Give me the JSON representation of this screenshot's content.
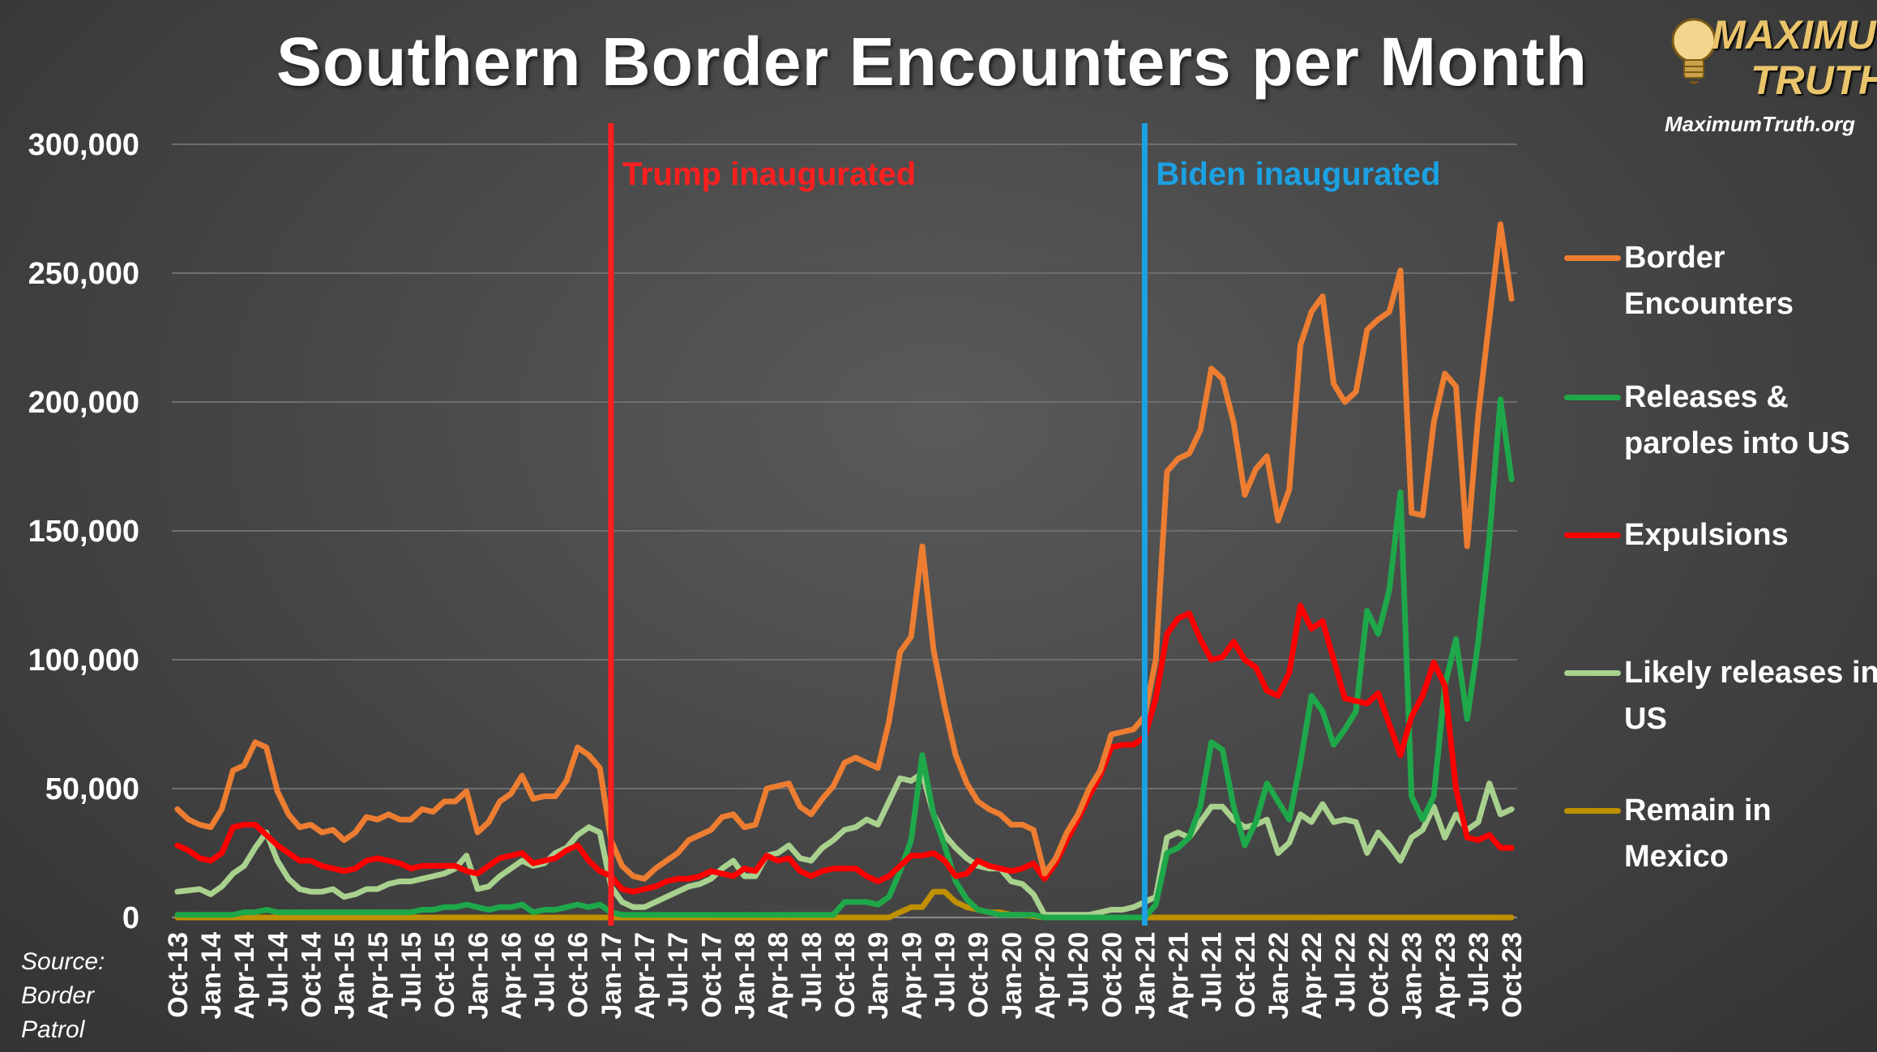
{
  "title": "Southern Border Encounters per Month",
  "logo": {
    "line1": "MAXIMUM",
    "line2": "TRUTH",
    "url": "MaximumTruth.org"
  },
  "source": {
    "line1": "Source:",
    "line2": "Border",
    "line3": "Patrol"
  },
  "colors": {
    "border_encounters": "#ed7d31",
    "releases": "#1ea84a",
    "expulsions": "#ff0000",
    "likely_releases": "#a9d18e",
    "remain_in_mexico": "#bf9000",
    "trump_line": "#ff1f1f",
    "biden_line": "#1ba1e2",
    "grid": "#6e6e6e",
    "axis_text": "#ffffff"
  },
  "chart_data": {
    "type": "line",
    "ylim": [
      0,
      300000
    ],
    "yticks": [
      0,
      50000,
      100000,
      150000,
      200000,
      250000,
      300000
    ],
    "ytick_labels": [
      "0",
      "50,000",
      "100,000",
      "150,000",
      "200,000",
      "250,000",
      "300,000"
    ],
    "x": [
      "Oct-13",
      "Nov-13",
      "Dec-13",
      "Jan-14",
      "Feb-14",
      "Mar-14",
      "Apr-14",
      "May-14",
      "Jun-14",
      "Jul-14",
      "Aug-14",
      "Sep-14",
      "Oct-14",
      "Nov-14",
      "Dec-14",
      "Jan-15",
      "Feb-15",
      "Mar-15",
      "Apr-15",
      "May-15",
      "Jun-15",
      "Jul-15",
      "Aug-15",
      "Sep-15",
      "Oct-15",
      "Nov-15",
      "Dec-15",
      "Jan-16",
      "Feb-16",
      "Mar-16",
      "Apr-16",
      "May-16",
      "Jun-16",
      "Jul-16",
      "Aug-16",
      "Sep-16",
      "Oct-16",
      "Nov-16",
      "Dec-16",
      "Jan-17",
      "Feb-17",
      "Mar-17",
      "Apr-17",
      "May-17",
      "Jun-17",
      "Jul-17",
      "Aug-17",
      "Sep-17",
      "Oct-17",
      "Nov-17",
      "Dec-17",
      "Jan-18",
      "Feb-18",
      "Mar-18",
      "Apr-18",
      "May-18",
      "Jun-18",
      "Jul-18",
      "Aug-18",
      "Sep-18",
      "Oct-18",
      "Nov-18",
      "Dec-18",
      "Jan-19",
      "Feb-19",
      "Mar-19",
      "Apr-19",
      "May-19",
      "Jun-19",
      "Jul-19",
      "Aug-19",
      "Sep-19",
      "Oct-19",
      "Nov-19",
      "Dec-19",
      "Jan-20",
      "Feb-20",
      "Mar-20",
      "Apr-20",
      "May-20",
      "Jun-20",
      "Jul-20",
      "Aug-20",
      "Sep-20",
      "Oct-20",
      "Nov-20",
      "Dec-20",
      "Jan-21",
      "Feb-21",
      "Mar-21",
      "Apr-21",
      "May-21",
      "Jun-21",
      "Jul-21",
      "Aug-21",
      "Sep-21",
      "Oct-21",
      "Nov-21",
      "Dec-21",
      "Jan-22",
      "Feb-22",
      "Mar-22",
      "Apr-22",
      "May-22",
      "Jun-22",
      "Jul-22",
      "Aug-22",
      "Sep-22",
      "Oct-22",
      "Nov-22",
      "Dec-22",
      "Jan-23",
      "Feb-23",
      "Mar-23",
      "Apr-23",
      "May-23",
      "Jun-23",
      "Jul-23",
      "Aug-23",
      "Sep-23",
      "Oct-23"
    ],
    "xtick_labels": [
      "Oct-13",
      "Jan-14",
      "Apr-14",
      "Jul-14",
      "Oct-14",
      "Jan-15",
      "Apr-15",
      "Jul-15",
      "Oct-15",
      "Jan-16",
      "Apr-16",
      "Jul-16",
      "Oct-16",
      "Jan-17",
      "Apr-17",
      "Jul-17",
      "Oct-17",
      "Jan-18",
      "Apr-18",
      "Jul-18",
      "Oct-18",
      "Jan-19",
      "Apr-19",
      "Jul-19",
      "Oct-19",
      "Jan-20",
      "Apr-20",
      "Jul-20",
      "Oct-20",
      "Jan-21",
      "Apr-21",
      "Jul-21",
      "Oct-21",
      "Jan-22",
      "Apr-22",
      "Jul-22",
      "Oct-22",
      "Jan-23",
      "Apr-23",
      "Jul-23",
      "Oct-23"
    ],
    "series": [
      {
        "key": "border_encounters",
        "name": "Border Encounters",
        "values": [
          42000,
          38000,
          36000,
          35000,
          42000,
          57000,
          59000,
          68000,
          66000,
          49000,
          40000,
          35000,
          36000,
          33000,
          34000,
          30000,
          33000,
          39000,
          38000,
          40000,
          38000,
          38000,
          42000,
          41000,
          45000,
          45000,
          49000,
          33000,
          37000,
          45000,
          48000,
          55000,
          46000,
          47000,
          47000,
          53000,
          66000,
          63000,
          58000,
          30000,
          20000,
          16000,
          15000,
          19000,
          22000,
          25000,
          30000,
          32000,
          34000,
          39000,
          40000,
          35000,
          36000,
          50000,
          51000,
          52000,
          43000,
          40000,
          46000,
          51000,
          60000,
          62000,
          60000,
          58000,
          76000,
          103000,
          109000,
          144000,
          104000,
          82000,
          63000,
          52000,
          45000,
          42000,
          40000,
          36000,
          36000,
          34000,
          17000,
          23000,
          33000,
          40000,
          50000,
          57000,
          71000,
          72000,
          73000,
          78000,
          100000,
          173000,
          178000,
          180000,
          189000,
          213000,
          209000,
          192000,
          164000,
          174000,
          179000,
          154000,
          166000,
          222000,
          235000,
          241000,
          207000,
          200000,
          204000,
          228000,
          232000,
          235000,
          251000,
          157000,
          156000,
          192000,
          211000,
          206000,
          144000,
          195000,
          232000,
          269000,
          240000
        ]
      },
      {
        "key": "releases",
        "name": "Releases & paroles into US",
        "values": [
          1000,
          1000,
          1000,
          1000,
          1000,
          1000,
          2000,
          2000,
          3000,
          2000,
          2000,
          2000,
          2000,
          2000,
          2000,
          2000,
          2000,
          2000,
          2000,
          2000,
          2000,
          2000,
          3000,
          3000,
          4000,
          4000,
          5000,
          4000,
          3000,
          4000,
          4000,
          5000,
          2000,
          3000,
          3000,
          4000,
          5000,
          4000,
          5000,
          2000,
          1000,
          1000,
          1000,
          1000,
          1000,
          1000,
          1000,
          1000,
          1000,
          1000,
          1000,
          1000,
          1000,
          1000,
          1000,
          1000,
          1000,
          1000,
          1000,
          1000,
          6000,
          6000,
          6000,
          5000,
          8000,
          18000,
          30000,
          63000,
          40000,
          28000,
          14000,
          7000,
          3000,
          2000,
          1000,
          1000,
          1000,
          1000,
          0,
          0,
          0,
          0,
          0,
          0,
          0,
          0,
          0,
          0,
          5000,
          25000,
          27000,
          31000,
          43000,
          68000,
          65000,
          43000,
          28000,
          37000,
          52000,
          45000,
          38000,
          60000,
          86000,
          80000,
          67000,
          73000,
          80000,
          119000,
          110000,
          127000,
          165000,
          47000,
          38000,
          47000,
          90000,
          108000,
          77000,
          107000,
          147000,
          201000,
          170000
        ]
      },
      {
        "key": "expulsions",
        "name": "Expulsions",
        "values": [
          28000,
          26000,
          23000,
          22000,
          25000,
          35000,
          36000,
          36000,
          32000,
          28000,
          25000,
          22000,
          22000,
          20000,
          19000,
          18000,
          19000,
          22000,
          23000,
          22000,
          21000,
          19000,
          20000,
          20000,
          20000,
          20000,
          18000,
          17000,
          20000,
          23000,
          24000,
          25000,
          21000,
          22000,
          23000,
          26000,
          28000,
          22000,
          18000,
          16000,
          11000,
          10000,
          11000,
          12000,
          14000,
          15000,
          15000,
          16000,
          18000,
          17000,
          16000,
          19000,
          18000,
          24000,
          22000,
          23000,
          18000,
          16000,
          18000,
          19000,
          19000,
          19000,
          16000,
          14000,
          16000,
          20000,
          24000,
          24000,
          25000,
          22000,
          16000,
          17000,
          22000,
          20000,
          19000,
          18000,
          19000,
          21000,
          15000,
          21000,
          30000,
          38000,
          47000,
          55000,
          66000,
          67000,
          67000,
          70000,
          85000,
          110000,
          116000,
          118000,
          108000,
          100000,
          101000,
          107000,
          100000,
          97000,
          88000,
          86000,
          95000,
          121000,
          112000,
          115000,
          100000,
          85000,
          84000,
          83000,
          87000,
          75000,
          63000,
          78000,
          86000,
          99000,
          90000,
          50000,
          31000,
          30000,
          32000,
          27000,
          27000
        ]
      },
      {
        "key": "likely_releases",
        "name": "Likely releases in US",
        "values": [
          10000,
          10500,
          11000,
          9000,
          12000,
          17000,
          20000,
          27000,
          33000,
          22000,
          15000,
          11000,
          10000,
          10000,
          11000,
          8000,
          9000,
          11000,
          11000,
          13000,
          14000,
          14000,
          15000,
          16000,
          17000,
          19000,
          24000,
          11000,
          12000,
          16000,
          19000,
          22000,
          20000,
          21000,
          25000,
          27000,
          32000,
          35000,
          33000,
          12000,
          6000,
          4000,
          4000,
          6000,
          8000,
          10000,
          12000,
          13000,
          15000,
          19000,
          22000,
          16000,
          16000,
          24000,
          25000,
          28000,
          23000,
          22000,
          27000,
          30000,
          34000,
          35000,
          38000,
          36000,
          45000,
          54000,
          53000,
          56000,
          40000,
          32000,
          27000,
          23000,
          20000,
          19000,
          19000,
          14000,
          13000,
          9000,
          1000,
          1000,
          1000,
          1000,
          1000,
          2000,
          3000,
          3000,
          4000,
          6000,
          8000,
          31000,
          33000,
          31000,
          37000,
          43000,
          43000,
          38000,
          35000,
          36000,
          38000,
          25000,
          29000,
          40000,
          37000,
          44000,
          37000,
          38000,
          37000,
          25000,
          33000,
          28000,
          22000,
          31000,
          34000,
          43000,
          31000,
          40000,
          34000,
          37000,
          52000,
          40000,
          42000
        ]
      },
      {
        "key": "remain_in_mexico",
        "name": "Remain in Mexico",
        "values": [
          0,
          0,
          0,
          0,
          0,
          0,
          0,
          0,
          0,
          0,
          0,
          0,
          0,
          0,
          0,
          0,
          0,
          0,
          0,
          0,
          0,
          0,
          0,
          0,
          0,
          0,
          0,
          0,
          0,
          0,
          0,
          0,
          0,
          0,
          0,
          0,
          0,
          0,
          0,
          0,
          0,
          0,
          0,
          0,
          0,
          0,
          0,
          0,
          0,
          0,
          0,
          0,
          0,
          0,
          0,
          0,
          0,
          0,
          0,
          0,
          0,
          0,
          0,
          0,
          0,
          2000,
          4000,
          4000,
          10000,
          10000,
          6000,
          4000,
          3000,
          2000,
          2000,
          1000,
          1000,
          500,
          0,
          0,
          0,
          0,
          0,
          0,
          0,
          0,
          0,
          0,
          0,
          0,
          0,
          0,
          0,
          0,
          0,
          0,
          0,
          0,
          0,
          0,
          0,
          0,
          0,
          0,
          0,
          0,
          0,
          0,
          0,
          0,
          0,
          0,
          0,
          0,
          0,
          0,
          0,
          0,
          0,
          0,
          0
        ]
      }
    ],
    "annotations": [
      {
        "key": "trump",
        "label": "Trump inaugurated",
        "at": "Jan-17"
      },
      {
        "key": "biden",
        "label": "Biden inaugurated",
        "at": "Jan-21"
      }
    ],
    "legend_position": "right",
    "grid": true
  }
}
